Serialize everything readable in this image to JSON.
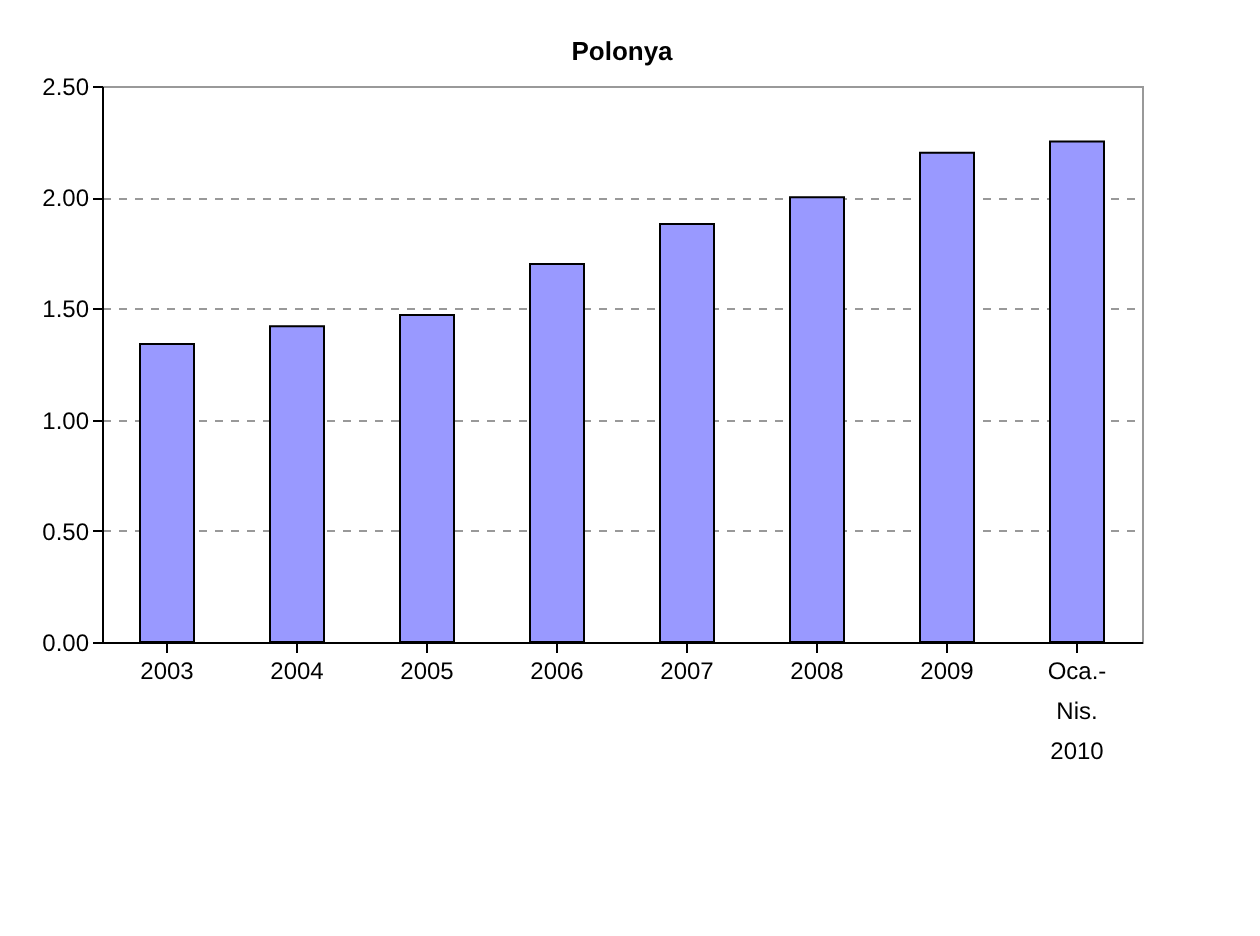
{
  "chart_data": {
    "type": "bar",
    "title": "Polonya",
    "categories": [
      "2003",
      "2004",
      "2005",
      "2006",
      "2007",
      "2008",
      "2009",
      "Oca.-Nis. 2010"
    ],
    "values": [
      1.34,
      1.42,
      1.47,
      1.7,
      1.88,
      2.0,
      2.2,
      2.25
    ],
    "color": "#9999ff",
    "ylim": [
      0,
      2.5
    ],
    "yticks": [
      {
        "value": 0,
        "label": "0.00"
      },
      {
        "value": 0.5,
        "label": "0.50"
      },
      {
        "value": 1,
        "label": "1.00"
      },
      {
        "value": 1.5,
        "label": "1.50"
      },
      {
        "value": 2,
        "label": "2.00"
      },
      {
        "value": 2.5,
        "label": "2.50"
      }
    ],
    "grid": "y",
    "line_style": "dashed"
  }
}
